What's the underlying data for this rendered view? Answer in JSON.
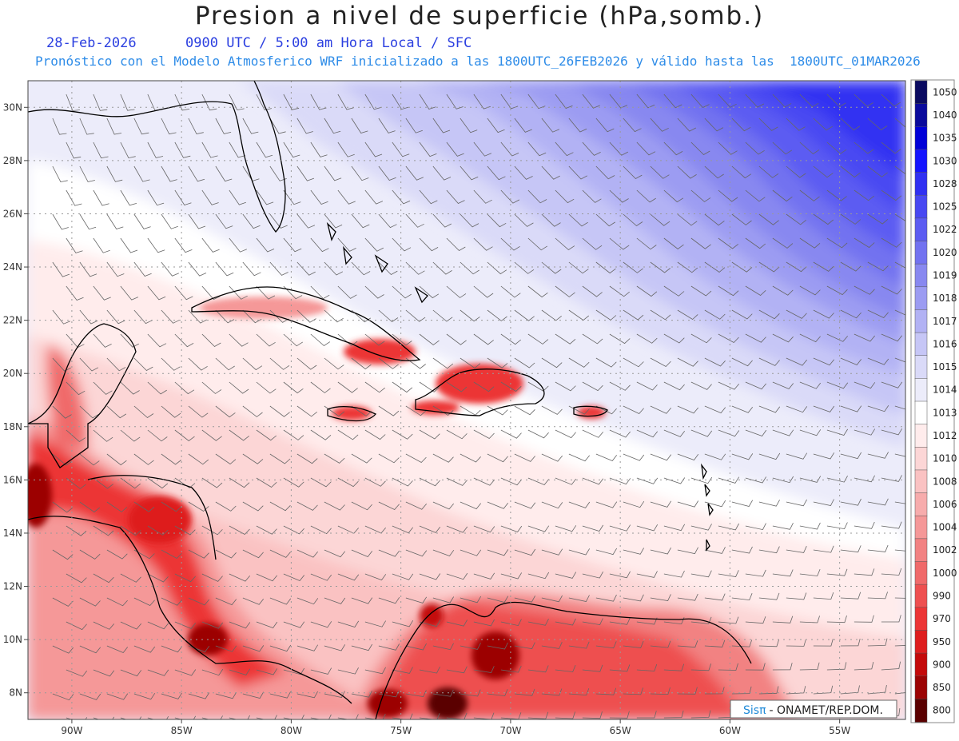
{
  "header": {
    "title": "Presion a nivel de superficie (hPa,somb.)",
    "date": "28-Feb-2026",
    "time_info": "0900 UTC / 5:00 am Hora Local / SFC",
    "forecast_info": "Pronóstico con el Modelo Atmosferico WRF inicializado a las 1800UTC_26FEB2026 y válido hasta las  1800UTC_01MAR2026"
  },
  "map": {
    "lat_labels": [
      "30N",
      "28N",
      "26N",
      "24N",
      "22N",
      "20N",
      "18N",
      "16N",
      "14N",
      "12N",
      "10N",
      "8N"
    ],
    "lon_labels": [
      "90W",
      "85W",
      "80W",
      "75W",
      "70W",
      "65W",
      "60W",
      "55W"
    ],
    "lon_range": [
      -92,
      -52
    ],
    "lat_range": [
      7,
      31
    ]
  },
  "legend": {
    "levels": [
      "1050",
      "1040",
      "1035",
      "1030",
      "1028",
      "1025",
      "1022",
      "1020",
      "1019",
      "1018",
      "1017",
      "1016",
      "1015",
      "1014",
      "1013",
      "1012",
      "1010",
      "1008",
      "1006",
      "1004",
      "1002",
      "1000",
      "990",
      "970",
      "950",
      "900",
      "850",
      "800"
    ],
    "colors": [
      "#0a0a60",
      "#0a0a9c",
      "#0000d8",
      "#1414ff",
      "#3030f2",
      "#4848f2",
      "#5c5cf2",
      "#7272f0",
      "#8888f0",
      "#9c9cf2",
      "#b2b2f4",
      "#c6c6f6",
      "#dadaf8",
      "#ececfa",
      "#ffffff",
      "#ffecec",
      "#fcd6d6",
      "#fac2c2",
      "#f7acac",
      "#f59898",
      "#f28282",
      "#f06a6a",
      "#ee5050",
      "#ec3636",
      "#de1e1e",
      "#c40a0a",
      "#9c0404",
      "#5a0000"
    ]
  },
  "credit": {
    "sis": "Sis",
    "pi": "π",
    "org": "- ONAMET/REP.DOM."
  }
}
